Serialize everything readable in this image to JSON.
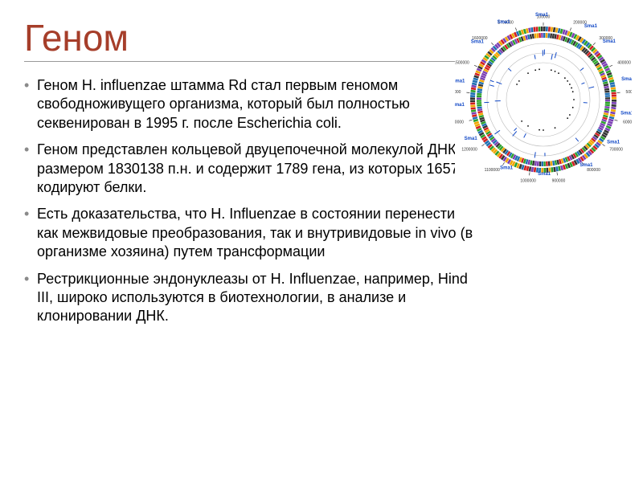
{
  "title": {
    "text": "Геном",
    "color": "#a63e2a",
    "fontsize": 46
  },
  "bullets": [
    "Геном H. influenzae штамма Rd стал первым геномом свободноживущего организма, который был полностью секвенирован в 1995 г. после Escherichia coli.",
    "Геном представлен кольцевой двуцепочечной молекулой ДНК размером 1830138 п.н. и содержит 1789 гена, из которых 1657 кодируют белки.",
    "Есть доказательства, что H. Influenzae в состоянии перенести как межвидовые преобразования, так и внутривидовые in vivo (в организме хозяина) путем трансформации",
    "Рестрикционные эндонуклеазы от H. Influenzae, например, Hind III, широко используются в биотехнологии, в анализе и клонировании ДНК."
  ],
  "body_style": {
    "fontsize": 18,
    "color": "#000000",
    "bullet_color": "#8a8a8a"
  },
  "genome_map": {
    "type": "circular-genome-map",
    "tick_labels": [
      "100000",
      "200000",
      "300000",
      "400000",
      "500000",
      "600000",
      "700000",
      "800000",
      "900000",
      "1000000",
      "1100000",
      "1200000",
      "1300000",
      "1400000",
      "1500000",
      "1600000",
      "1700000"
    ],
    "ring_colors": [
      "#1f6fb3",
      "#2aa02a",
      "#d11f1f",
      "#f0a500",
      "#7b3fb3",
      "#333333"
    ],
    "segment_count_estimate": 180,
    "background_color": "#ffffff",
    "outer_label_color": "#1148c6",
    "outer_label_fontsize": 6,
    "tick_label_fontsize": 5,
    "tick_label_color": "#333333"
  }
}
